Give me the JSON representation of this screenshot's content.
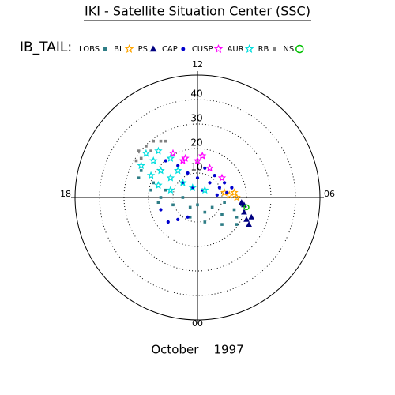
{
  "chart_data": {
    "type": "polar-scatter",
    "title": "IKI - Satellite Situation Center (SSC)",
    "legend_title": "IB_TAIL:",
    "date_label": "October    1997",
    "rlim": [
      0,
      50
    ],
    "rticks": [
      10,
      20,
      30,
      40
    ],
    "angle_ticks": [
      {
        "value": 12,
        "label": "12"
      },
      {
        "value": 6,
        "label": "06"
      },
      {
        "value": 0,
        "label": "00"
      },
      {
        "value": 18,
        "label": "18"
      }
    ],
    "series": [
      {
        "name": "LOBS",
        "color": "#2e7d86",
        "marker": "square",
        "x": [
          -24,
          -19,
          -15,
          -10,
          -3,
          3,
          10,
          16,
          15,
          6,
          0,
          -6,
          -13,
          -18,
          -23,
          3,
          10,
          16,
          18,
          -3,
          -16,
          11
        ],
        "y": [
          8,
          3,
          0,
          -3,
          -4,
          -6,
          -7,
          -8,
          -5,
          -4,
          -3,
          0,
          3,
          6,
          11,
          -10,
          -11,
          -11,
          -3,
          -8,
          -2,
          -2
        ]
      },
      {
        "name": "BL",
        "color": "#ffa500",
        "marker": "star",
        "x": [
          11,
          15,
          16,
          13
        ],
        "y": [
          2,
          2,
          0,
          1
        ]
      },
      {
        "name": "PS",
        "color": "#000080",
        "marker": "triangle",
        "x": [
          18,
          19,
          20,
          21,
          19,
          22
        ],
        "y": [
          -2,
          -6,
          -9,
          -11,
          -3,
          -8
        ]
      },
      {
        "name": "CAP",
        "color": "#0000cd",
        "marker": "dot",
        "x": [
          -13,
          -8,
          -4,
          0,
          5,
          9,
          12,
          3,
          7,
          11,
          14,
          -6,
          -2,
          2,
          -12,
          -8,
          -4,
          -15,
          8
        ],
        "y": [
          15,
          13,
          10,
          8,
          6,
          4,
          2,
          12,
          9,
          6,
          4,
          6,
          4,
          3,
          -10,
          -9,
          -8,
          -5,
          1
        ]
      },
      {
        "name": "CUSP",
        "color": "#ff00ff",
        "marker": "star",
        "x": [
          -10,
          -5,
          0,
          5,
          10,
          -6,
          2
        ],
        "y": [
          18,
          16,
          15,
          12,
          8,
          15,
          17
        ]
      },
      {
        "name": "AUR",
        "color": "#00dede",
        "marker": "star",
        "x": [
          -21,
          -18,
          -15,
          -11,
          -6,
          -2,
          3,
          -23,
          -19,
          -16,
          -11,
          -16,
          -11,
          -8
        ],
        "y": [
          18,
          15,
          11,
          8,
          6,
          4,
          3,
          13,
          9,
          5,
          3,
          19,
          16,
          11
        ]
      },
      {
        "name": "RB",
        "color": "#808080",
        "marker": "square",
        "x": [
          -24,
          -23,
          -21,
          -18,
          -15,
          -25,
          -13,
          -19
        ],
        "y": [
          19,
          16,
          21,
          23,
          23,
          15,
          23,
          19
        ]
      },
      {
        "name": "NS",
        "color": "#00c000",
        "marker": "circle",
        "x": [
          20
        ],
        "y": [
          -4
        ]
      }
    ]
  }
}
